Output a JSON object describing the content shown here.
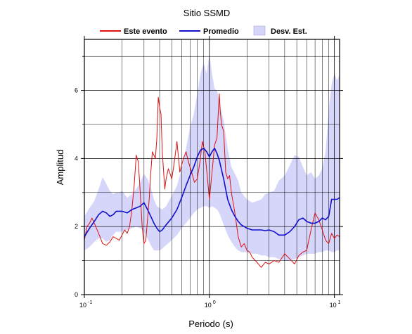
{
  "chart_data": {
    "type": "line",
    "title": "Sitio SSMD",
    "xlabel": "Periodo (s)",
    "ylabel": "Amplitud",
    "x_scale": "log",
    "xlim": [
      0.1,
      11
    ],
    "ylim": [
      0,
      7.5
    ],
    "grid": true,
    "legend_position": "top",
    "x_ticks": [
      {
        "value": 0.1,
        "base": "10",
        "exp": "-1"
      },
      {
        "value": 1,
        "base": "10",
        "exp": "0"
      },
      {
        "value": 10,
        "base": "10",
        "exp": "1"
      }
    ],
    "y_ticks": [
      0,
      2,
      4,
      6
    ],
    "legend": [
      {
        "label": "Este evento",
        "kind": "line",
        "color": "#dd1111"
      },
      {
        "label": "Promedio",
        "kind": "line",
        "color": "#1010cc"
      },
      {
        "label": "Desv. Est.",
        "kind": "band",
        "color": "#d6d6fb"
      }
    ],
    "series": [
      {
        "name": "Este evento",
        "color": "#dd1111",
        "x": [
          0.1,
          0.105,
          0.11,
          0.115,
          0.12,
          0.13,
          0.14,
          0.15,
          0.16,
          0.17,
          0.18,
          0.19,
          0.2,
          0.21,
          0.22,
          0.23,
          0.24,
          0.25,
          0.26,
          0.27,
          0.28,
          0.29,
          0.3,
          0.31,
          0.32,
          0.33,
          0.34,
          0.35,
          0.37,
          0.38,
          0.39,
          0.4,
          0.41,
          0.42,
          0.44,
          0.45,
          0.47,
          0.5,
          0.52,
          0.55,
          0.58,
          0.62,
          0.65,
          0.68,
          0.72,
          0.76,
          0.8,
          0.84,
          0.88,
          0.92,
          0.96,
          1.0,
          1.05,
          1.1,
          1.15,
          1.2,
          1.22,
          1.25,
          1.3,
          1.35,
          1.4,
          1.45,
          1.5,
          1.6,
          1.7,
          1.8,
          1.9,
          2.0,
          2.1,
          2.2,
          2.4,
          2.6,
          2.8,
          3.0,
          3.3,
          3.6,
          4.0,
          4.4,
          4.8,
          5.2,
          5.6,
          6.0,
          6.5,
          7.0,
          7.5,
          8.0,
          8.5,
          9.0,
          9.5,
          10.0,
          10.5,
          11.0
        ],
        "y": [
          1.6,
          2.0,
          2.1,
          2.25,
          2.1,
          1.8,
          1.5,
          1.45,
          1.55,
          1.7,
          1.65,
          1.6,
          1.75,
          1.9,
          1.8,
          2.0,
          2.5,
          3.2,
          4.1,
          3.9,
          3.0,
          2.0,
          1.5,
          1.6,
          2.2,
          2.8,
          3.6,
          4.2,
          4.0,
          4.6,
          5.8,
          5.5,
          5.3,
          4.2,
          3.1,
          3.4,
          3.7,
          3.4,
          3.8,
          4.5,
          3.6,
          4.0,
          4.2,
          3.9,
          3.6,
          3.3,
          3.4,
          3.9,
          4.5,
          4.2,
          3.5,
          2.8,
          3.6,
          4.4,
          4.6,
          5.9,
          5.4,
          5.0,
          4.8,
          3.6,
          3.4,
          3.5,
          3.0,
          2.4,
          1.7,
          1.4,
          1.5,
          1.3,
          1.25,
          1.1,
          0.95,
          0.8,
          0.95,
          0.9,
          1.0,
          0.95,
          1.2,
          1.05,
          0.9,
          1.15,
          1.25,
          1.3,
          1.9,
          2.4,
          2.2,
          1.9,
          1.6,
          1.5,
          1.8,
          1.65,
          1.75,
          1.7
        ]
      },
      {
        "name": "Promedio",
        "color": "#1010cc",
        "x": [
          0.1,
          0.11,
          0.12,
          0.13,
          0.14,
          0.15,
          0.16,
          0.17,
          0.18,
          0.19,
          0.2,
          0.22,
          0.24,
          0.26,
          0.28,
          0.3,
          0.32,
          0.34,
          0.36,
          0.38,
          0.4,
          0.42,
          0.45,
          0.5,
          0.55,
          0.6,
          0.65,
          0.7,
          0.75,
          0.8,
          0.85,
          0.9,
          0.95,
          1.0,
          1.05,
          1.1,
          1.15,
          1.2,
          1.3,
          1.4,
          1.5,
          1.6,
          1.7,
          1.8,
          2.0,
          2.2,
          2.4,
          2.6,
          2.8,
          3.0,
          3.3,
          3.6,
          4.0,
          4.4,
          4.8,
          5.2,
          5.6,
          6.0,
          6.5,
          7.0,
          7.5,
          8.0,
          8.5,
          9.0,
          9.5,
          10.0,
          10.5,
          11.0
        ],
        "y": [
          1.7,
          1.95,
          2.15,
          2.35,
          2.45,
          2.4,
          2.3,
          2.35,
          2.45,
          2.45,
          2.45,
          2.4,
          2.5,
          2.55,
          2.6,
          2.7,
          2.5,
          2.3,
          2.1,
          1.95,
          1.85,
          1.9,
          2.05,
          2.25,
          2.5,
          2.85,
          3.2,
          3.5,
          3.75,
          4.05,
          4.25,
          4.3,
          4.2,
          4.05,
          4.2,
          4.3,
          4.15,
          3.95,
          3.4,
          2.8,
          2.5,
          2.3,
          2.15,
          2.05,
          1.95,
          1.9,
          1.9,
          1.9,
          1.88,
          1.9,
          1.85,
          1.75,
          1.75,
          1.85,
          2.0,
          2.2,
          2.25,
          2.15,
          2.1,
          2.1,
          2.15,
          2.25,
          2.2,
          2.3,
          2.8,
          2.8,
          2.8,
          2.85
        ]
      }
    ],
    "band": {
      "name": "Desv. Est.",
      "color": "#d6d6fb",
      "x": [
        0.1,
        0.11,
        0.12,
        0.13,
        0.14,
        0.15,
        0.16,
        0.17,
        0.18,
        0.19,
        0.2,
        0.22,
        0.24,
        0.26,
        0.28,
        0.3,
        0.32,
        0.34,
        0.36,
        0.38,
        0.4,
        0.42,
        0.45,
        0.5,
        0.55,
        0.6,
        0.65,
        0.7,
        0.75,
        0.8,
        0.85,
        0.9,
        0.95,
        1.0,
        1.05,
        1.1,
        1.15,
        1.2,
        1.3,
        1.4,
        1.5,
        1.6,
        1.7,
        1.8,
        2.0,
        2.2,
        2.4,
        2.6,
        2.8,
        3.0,
        3.3,
        3.6,
        4.0,
        4.4,
        4.8,
        5.2,
        5.6,
        6.0,
        6.5,
        7.0,
        7.5,
        8.0,
        8.5,
        9.0,
        9.5,
        10.0,
        10.5,
        11.0
      ],
      "upper": [
        2.3,
        2.55,
        2.75,
        3.1,
        3.45,
        3.25,
        3.05,
        2.95,
        3.0,
        3.0,
        3.05,
        2.85,
        2.95,
        3.1,
        3.3,
        3.55,
        3.4,
        3.15,
        2.8,
        2.6,
        2.55,
        2.5,
        2.6,
        2.9,
        3.2,
        3.7,
        4.3,
        4.9,
        5.3,
        5.9,
        6.5,
        6.8,
        6.5,
        7.05,
        6.5,
        6.05,
        6.0,
        5.7,
        5.1,
        4.3,
        3.75,
        3.55,
        3.35,
        3.0,
        2.8,
        2.7,
        2.75,
        2.8,
        2.95,
        3.0,
        3.05,
        3.35,
        3.5,
        3.8,
        4.1,
        4.05,
        3.75,
        3.5,
        3.6,
        3.4,
        3.5,
        3.7,
        4.2,
        5.4,
        6.2,
        6.5,
        6.3,
        6.45
      ]
    },
    "band_lower": [
      1.3,
      1.4,
      1.55,
      1.65,
      1.65,
      1.55,
      1.6,
      1.75,
      1.85,
      1.85,
      1.85,
      1.9,
      1.95,
      2.0,
      1.95,
      1.85,
      1.65,
      1.45,
      1.3,
      1.3,
      1.3,
      1.35,
      1.45,
      1.6,
      1.75,
      1.95,
      2.1,
      2.25,
      2.4,
      2.5,
      2.55,
      2.6,
      2.6,
      2.55,
      2.6,
      2.55,
      2.5,
      2.4,
      2.05,
      1.75,
      1.55,
      1.4,
      1.3,
      1.25,
      1.25,
      1.2,
      1.2,
      1.15,
      1.15,
      1.1,
      1.1,
      1.05,
      1.0,
      1.0,
      1.05,
      1.1,
      1.15,
      1.2,
      1.2,
      1.2,
      1.25,
      1.25,
      1.3,
      1.3,
      1.25,
      1.25,
      1.3,
      1.3
    ]
  }
}
